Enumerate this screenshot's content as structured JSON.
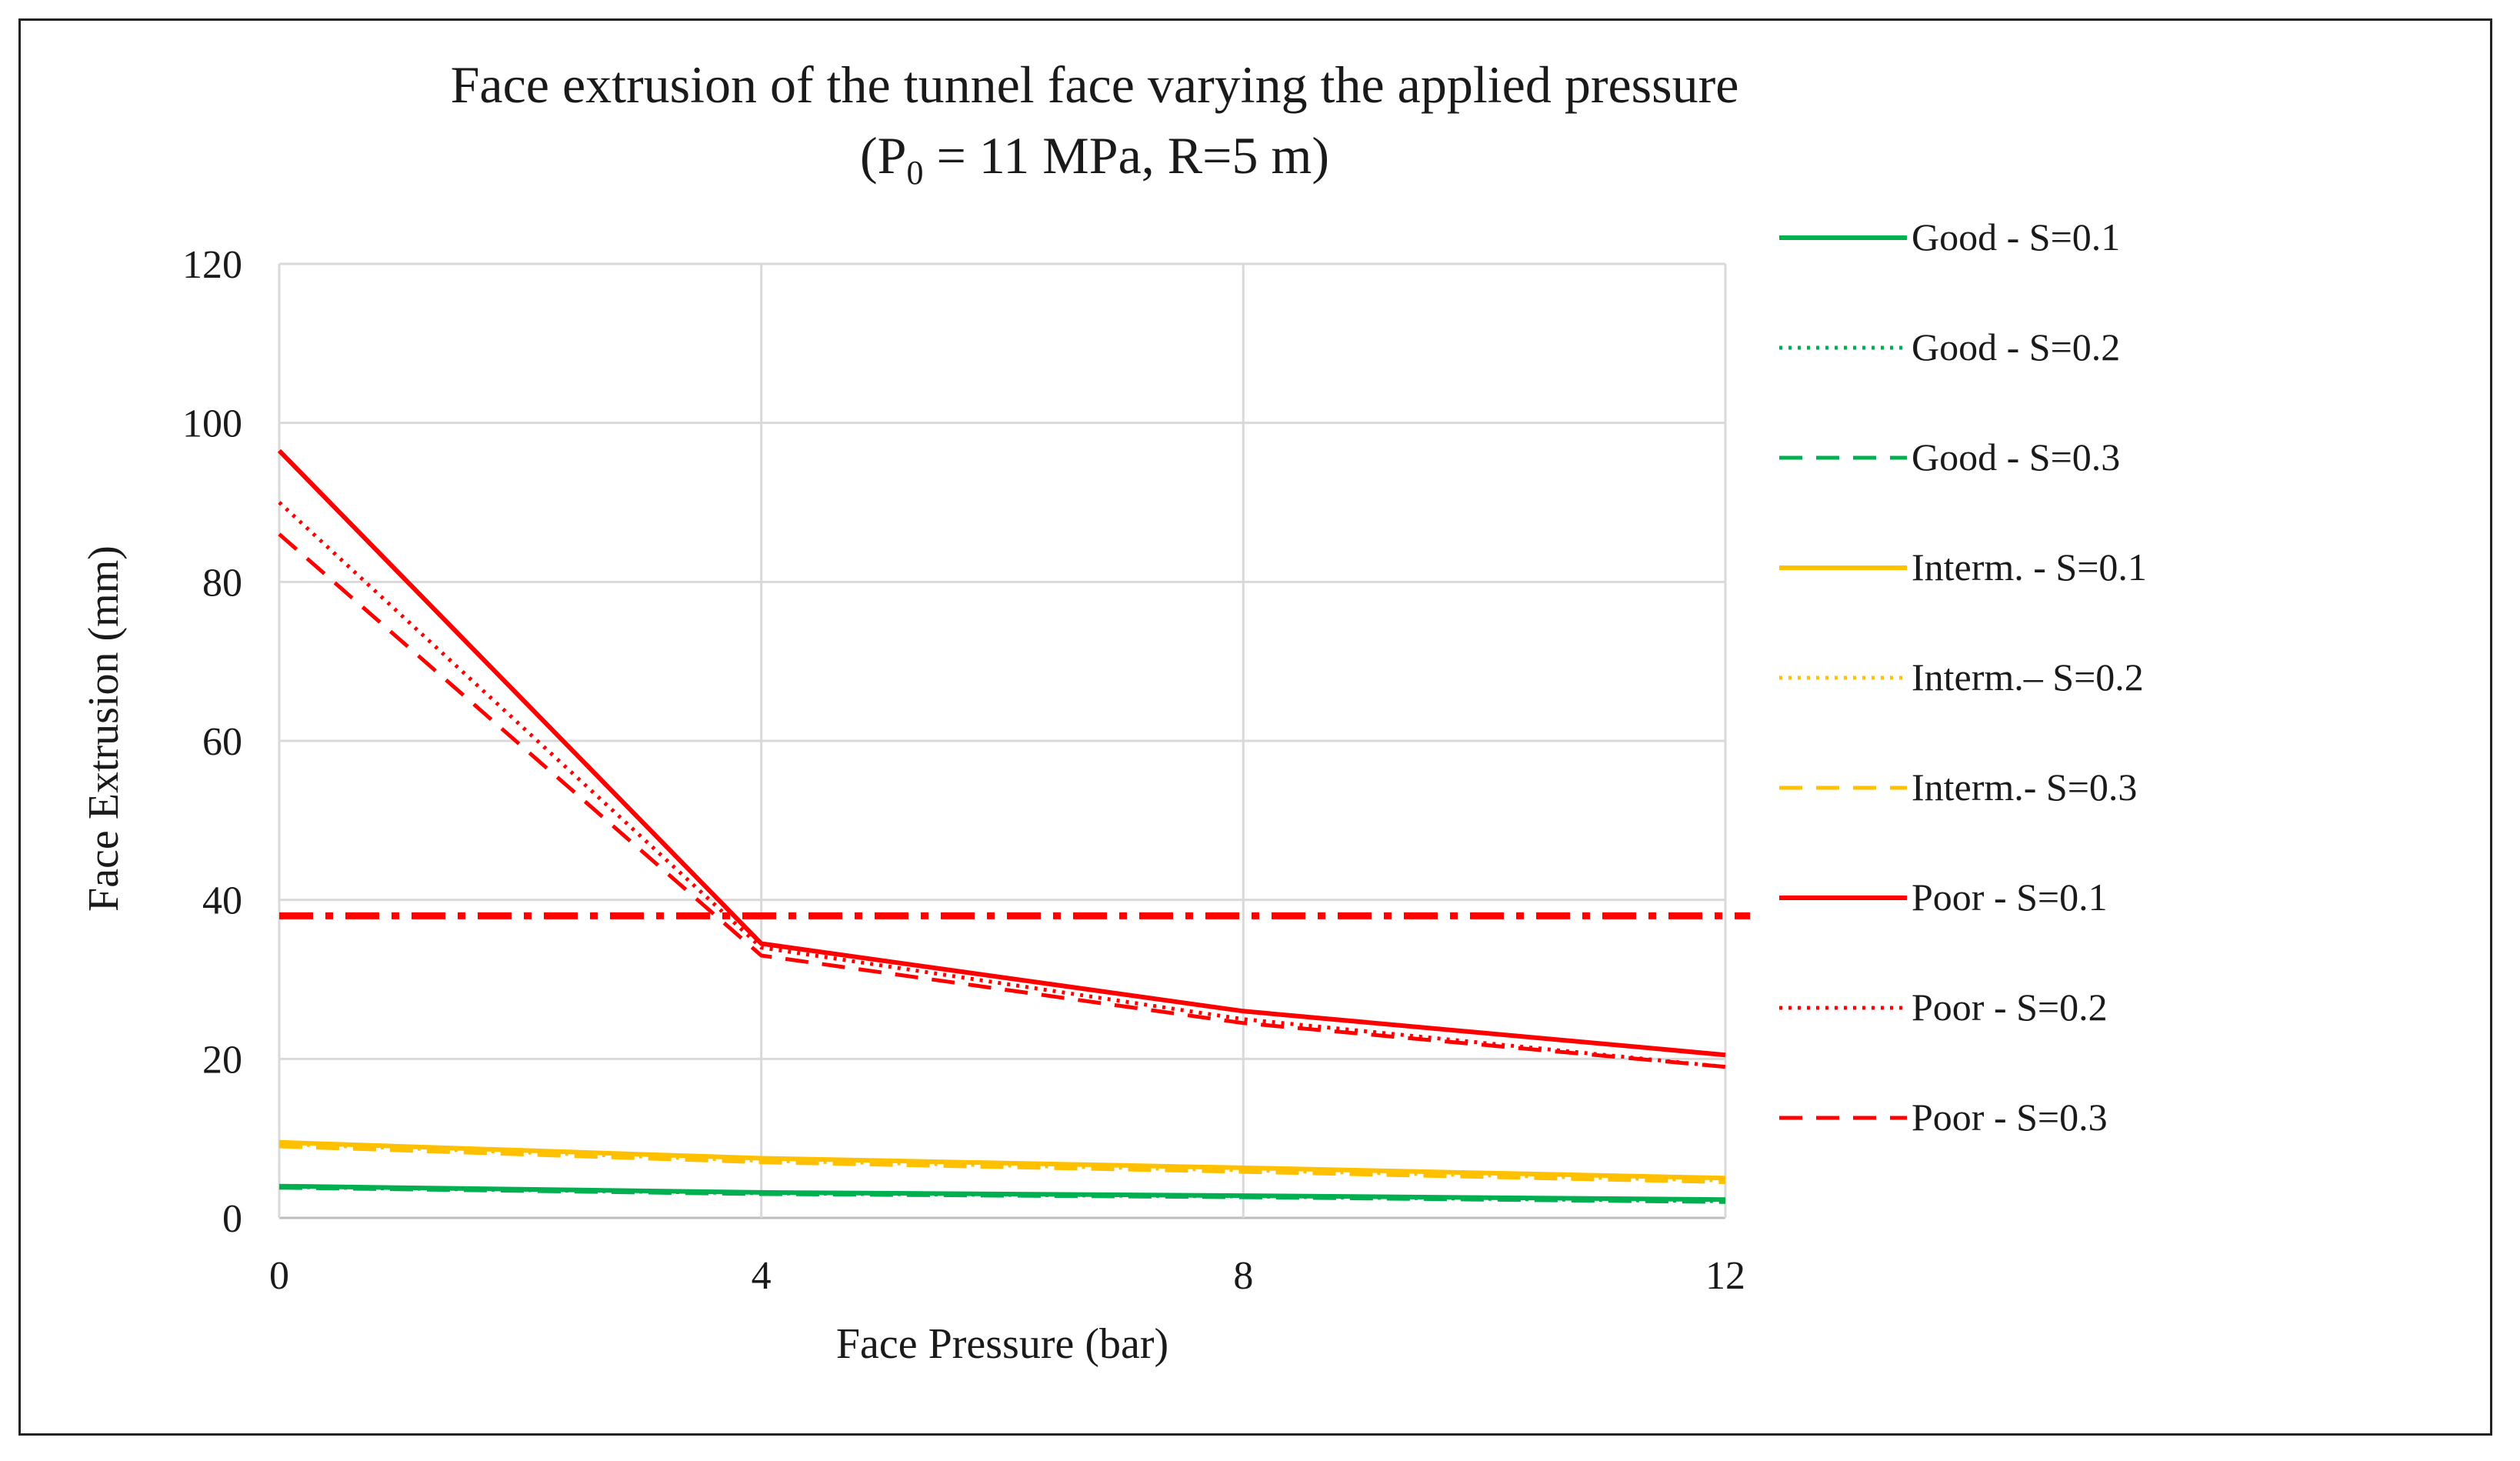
{
  "chart_data": {
    "type": "line",
    "title_line1": "Face extrusion of the tunnel face varying the applied pressure",
    "title_line2_prefix": "(P",
    "title_line2_sub": "0",
    "title_line2_suffix": " = 11 MPa, R=5 m)",
    "xlabel": "Face Pressure (bar)",
    "ylabel": "Face Extrusion (mm)",
    "xlim": [
      0,
      12
    ],
    "ylim": [
      0,
      120
    ],
    "x_ticks": [
      0,
      4,
      8,
      12
    ],
    "y_ticks": [
      0,
      20,
      40,
      60,
      80,
      100,
      120
    ],
    "x_tick_labels": [
      "0",
      "4",
      "8",
      "12"
    ],
    "y_tick_labels": [
      "0",
      "20",
      "40",
      "60",
      "80",
      "100",
      "120"
    ],
    "vertical_gridlines": true,
    "horizontal_gridlines": true,
    "legend_position": "right",
    "x": [
      0,
      4,
      8,
      12
    ],
    "series": [
      {
        "name": "Good - S=0.1",
        "color": "#00b050",
        "style": "solid",
        "values": [
          4.0,
          3.2,
          2.8,
          2.3
        ]
      },
      {
        "name": "Good - S=0.2",
        "color": "#00b050",
        "style": "dotted",
        "values": [
          3.9,
          3.1,
          2.7,
          2.1
        ]
      },
      {
        "name": "Good - S=0.3",
        "color": "#00b050",
        "style": "dashed",
        "values": [
          3.8,
          3.0,
          2.6,
          2.0
        ]
      },
      {
        "name": "Interm. - S=0.1",
        "color": "#ffc000",
        "style": "solid",
        "values": [
          9.5,
          7.5,
          6.3,
          5.0
        ]
      },
      {
        "name": "Interm.– S=0.2",
        "color": "#ffc000",
        "style": "dotted",
        "values": [
          9.3,
          7.2,
          6.0,
          4.7
        ]
      },
      {
        "name": "Interm.- S=0.3",
        "color": "#ffc000",
        "style": "dashed",
        "values": [
          9.0,
          7.0,
          5.8,
          4.5
        ]
      },
      {
        "name": "Poor - S=0.1",
        "color": "#ff0000",
        "style": "solid",
        "values": [
          96.5,
          34.5,
          26.0,
          20.5
        ]
      },
      {
        "name": "Poor - S=0.2",
        "color": "#ff0000",
        "style": "dotted",
        "values": [
          90.0,
          34.0,
          25.0,
          19.0
        ]
      },
      {
        "name": "Poor - S=0.3",
        "color": "#ff0000",
        "style": "dashed",
        "values": [
          86.0,
          33.0,
          24.5,
          19.0
        ]
      }
    ],
    "reference_line": {
      "y": 38,
      "color": "#ff0000",
      "style": "dash-dot"
    }
  }
}
